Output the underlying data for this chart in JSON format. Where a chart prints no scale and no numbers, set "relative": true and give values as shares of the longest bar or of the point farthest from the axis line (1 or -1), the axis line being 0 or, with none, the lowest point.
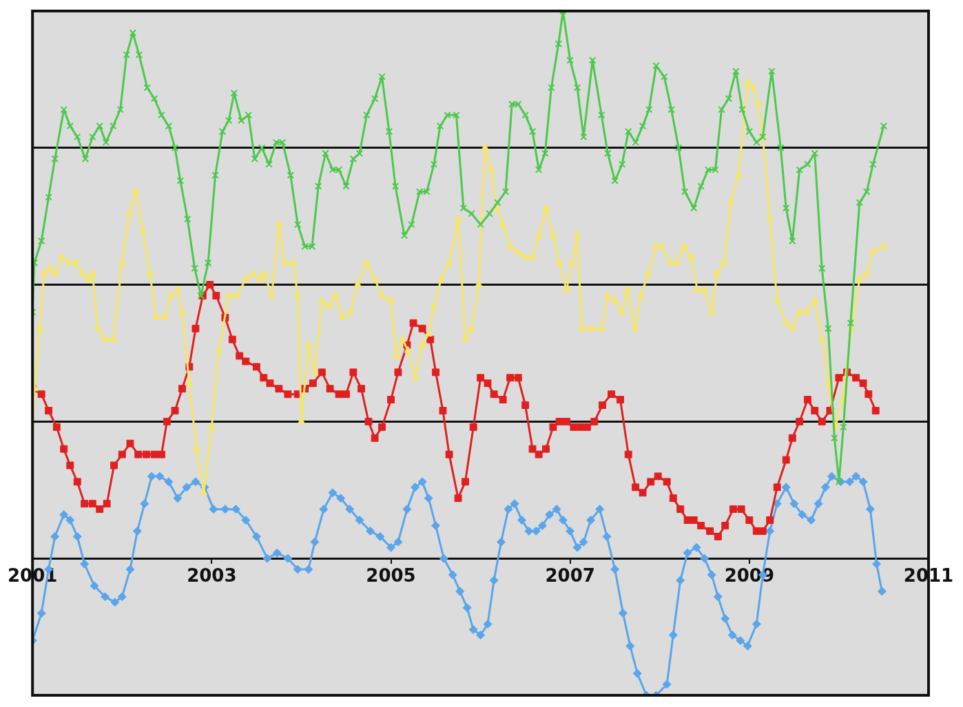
{
  "chart_data": {
    "type": "line",
    "relative": true,
    "grid": "y",
    "legend": false,
    "line_style": "solid",
    "xlim": [
      2001,
      2011
    ],
    "xticks": [
      2001,
      2003,
      2005,
      2007,
      2009,
      2011
    ],
    "series": [
      {
        "color": "#4cc94c",
        "marker": "cross",
        "x": [
          2001.0,
          2001.02,
          2001.1,
          2001.18,
          2001.25,
          2001.35,
          2001.42,
          2001.5,
          2001.59,
          2001.67,
          2001.75,
          2001.82,
          2001.9,
          2001.98,
          2002.05,
          2002.12,
          2002.19,
          2002.28,
          2002.36,
          2002.44,
          2002.52,
          2002.59,
          2002.65,
          2002.73,
          2002.81,
          2002.88,
          2002.96,
          2003.04,
          2003.12,
          2003.19,
          2003.25,
          2003.33,
          2003.41,
          2003.48,
          2003.56,
          2003.64,
          2003.72,
          2003.79,
          2003.88,
          2003.96,
          2004.04,
          2004.12,
          2004.19,
          2004.27,
          2004.35,
          2004.42,
          2004.5,
          2004.58,
          2004.65,
          2004.73,
          2004.82,
          2004.9,
          2004.98,
          2005.05,
          2005.15,
          2005.23,
          2005.32,
          2005.4,
          2005.48,
          2005.55,
          2005.63,
          2005.73,
          2005.81,
          2005.9,
          2006.0,
          2006.1,
          2006.19,
          2006.28,
          2006.35,
          2006.42,
          2006.5,
          2006.58,
          2006.65,
          2006.72,
          2006.79,
          2006.87,
          2006.92,
          2007.0,
          2007.08,
          2007.15,
          2007.25,
          2007.35,
          2007.42,
          2007.5,
          2007.58,
          2007.65,
          2007.73,
          2007.81,
          2007.88,
          2007.96,
          2008.05,
          2008.13,
          2008.21,
          2008.28,
          2008.38,
          2008.46,
          2008.54,
          2008.62,
          2008.69,
          2008.77,
          2008.85,
          2008.92,
          2009.0,
          2009.08,
          2009.15,
          2009.25,
          2009.35,
          2009.41,
          2009.48,
          2009.56,
          2009.65,
          2009.73,
          2009.81,
          2009.88,
          2009.95,
          2010.0,
          2010.05,
          2010.13,
          2010.23,
          2010.31,
          2010.38,
          2010.5
        ],
        "values": [
          0.45,
          0.54,
          0.58,
          0.66,
          0.73,
          0.82,
          0.79,
          0.77,
          0.73,
          0.77,
          0.79,
          0.76,
          0.79,
          0.82,
          0.92,
          0.96,
          0.92,
          0.86,
          0.84,
          0.81,
          0.79,
          0.75,
          0.69,
          0.62,
          0.53,
          0.48,
          0.54,
          0.7,
          0.78,
          0.8,
          0.85,
          0.8,
          0.81,
          0.73,
          0.75,
          0.72,
          0.76,
          0.76,
          0.7,
          0.61,
          0.57,
          0.57,
          0.68,
          0.74,
          0.71,
          0.71,
          0.68,
          0.73,
          0.74,
          0.81,
          0.84,
          0.88,
          0.78,
          0.68,
          0.59,
          0.61,
          0.67,
          0.67,
          0.72,
          0.79,
          0.81,
          0.81,
          0.64,
          0.63,
          0.61,
          0.63,
          0.65,
          0.67,
          0.83,
          0.83,
          0.81,
          0.78,
          0.71,
          0.74,
          0.86,
          0.94,
          1.0,
          0.91,
          0.86,
          0.77,
          0.91,
          0.81,
          0.74,
          0.69,
          0.72,
          0.78,
          0.76,
          0.79,
          0.82,
          0.9,
          0.88,
          0.82,
          0.75,
          0.67,
          0.64,
          0.68,
          0.71,
          0.71,
          0.82,
          0.84,
          0.89,
          0.82,
          0.78,
          0.76,
          0.77,
          0.89,
          0.75,
          0.64,
          0.58,
          0.71,
          0.72,
          0.74,
          0.53,
          0.42,
          0.22,
          0.14,
          0.24,
          0.43,
          0.65,
          0.67,
          0.72,
          0.79
        ]
      },
      {
        "color": "#f5e66a",
        "marker": "triangle",
        "x": [
          2001.0,
          2001.02,
          2001.08,
          2001.13,
          2001.19,
          2001.25,
          2001.33,
          2001.41,
          2001.48,
          2001.56,
          2001.62,
          2001.67,
          2001.73,
          2001.81,
          2001.9,
          2002.0,
          2002.08,
          2002.15,
          2002.23,
          2002.31,
          2002.38,
          2002.48,
          2002.54,
          2002.62,
          2002.67,
          2002.75,
          2002.83,
          2002.91,
          2003.0,
          2003.08,
          2003.19,
          2003.28,
          2003.38,
          2003.46,
          2003.54,
          2003.59,
          2003.67,
          2003.75,
          2003.81,
          2003.91,
          2003.96,
          2004.0,
          2004.08,
          2004.15,
          2004.23,
          2004.31,
          2004.38,
          2004.46,
          2004.55,
          2004.63,
          2004.73,
          2004.82,
          2004.9,
          2005.0,
          2005.06,
          2005.13,
          2005.19,
          2005.27,
          2005.35,
          2005.42,
          2005.48,
          2005.56,
          2005.65,
          2005.75,
          2005.83,
          2005.9,
          2005.98,
          2006.05,
          2006.12,
          2006.18,
          2006.25,
          2006.33,
          2006.41,
          2006.5,
          2006.58,
          2006.65,
          2006.73,
          2006.81,
          2006.88,
          2006.96,
          2007.02,
          2007.08,
          2007.13,
          2007.23,
          2007.35,
          2007.42,
          2007.5,
          2007.58,
          2007.64,
          2007.72,
          2007.79,
          2007.87,
          2007.96,
          2008.02,
          2008.12,
          2008.19,
          2008.27,
          2008.35,
          2008.42,
          2008.5,
          2008.58,
          2008.64,
          2008.72,
          2008.79,
          2008.88,
          2008.98,
          2009.04,
          2009.1,
          2009.15,
          2009.23,
          2009.31,
          2009.41,
          2009.48,
          2009.56,
          2009.64,
          2009.73,
          2009.81,
          2009.88,
          2009.96,
          2010.04,
          2010.14,
          2010.23,
          2010.31,
          2010.38,
          2010.5
        ],
        "values": [
          0.24,
          0.31,
          0.42,
          0.52,
          0.53,
          0.52,
          0.55,
          0.54,
          0.54,
          0.52,
          0.51,
          0.52,
          0.42,
          0.4,
          0.4,
          0.54,
          0.63,
          0.67,
          0.6,
          0.52,
          0.44,
          0.44,
          0.48,
          0.49,
          0.45,
          0.32,
          0.2,
          0.12,
          0.24,
          0.38,
          0.48,
          0.48,
          0.51,
          0.52,
          0.51,
          0.52,
          0.48,
          0.61,
          0.54,
          0.54,
          0.48,
          0.25,
          0.39,
          0.34,
          0.47,
          0.46,
          0.48,
          0.44,
          0.45,
          0.5,
          0.54,
          0.51,
          0.48,
          0.47,
          0.37,
          0.4,
          0.38,
          0.33,
          0.39,
          0.41,
          0.46,
          0.51,
          0.54,
          0.62,
          0.4,
          0.42,
          0.5,
          0.75,
          0.71,
          0.64,
          0.61,
          0.57,
          0.56,
          0.55,
          0.55,
          0.59,
          0.64,
          0.59,
          0.54,
          0.49,
          0.54,
          0.59,
          0.42,
          0.42,
          0.42,
          0.48,
          0.47,
          0.45,
          0.49,
          0.42,
          0.48,
          0.52,
          0.57,
          0.57,
          0.54,
          0.54,
          0.57,
          0.55,
          0.49,
          0.49,
          0.45,
          0.52,
          0.54,
          0.65,
          0.7,
          0.87,
          0.86,
          0.83,
          0.77,
          0.62,
          0.47,
          0.43,
          0.42,
          0.45,
          0.45,
          0.47,
          0.4,
          0.32,
          0.24,
          0.29,
          0.42,
          0.51,
          0.52,
          0.56,
          0.57
        ]
      },
      {
        "color": "#e02020",
        "marker": "square",
        "x": [
          2001.0,
          2001.1,
          2001.18,
          2001.27,
          2001.35,
          2001.42,
          2001.5,
          2001.58,
          2001.67,
          2001.75,
          2001.83,
          2001.91,
          2002.0,
          2002.09,
          2002.18,
          2002.27,
          2002.36,
          2002.44,
          2002.5,
          2002.59,
          2002.67,
          2002.75,
          2002.82,
          2002.9,
          2002.98,
          2003.05,
          2003.15,
          2003.23,
          2003.31,
          2003.38,
          2003.5,
          2003.58,
          2003.65,
          2003.75,
          2003.85,
          2003.96,
          2004.04,
          2004.13,
          2004.23,
          2004.32,
          2004.42,
          2004.5,
          2004.58,
          2004.67,
          2004.75,
          2004.82,
          2004.9,
          2005.0,
          2005.08,
          2005.18,
          2005.25,
          2005.35,
          2005.44,
          2005.5,
          2005.58,
          2005.65,
          2005.75,
          2005.83,
          2005.92,
          2006.0,
          2006.08,
          2006.15,
          2006.25,
          2006.33,
          2006.42,
          2006.5,
          2006.58,
          2006.65,
          2006.73,
          2006.81,
          2006.88,
          2006.96,
          2007.04,
          2007.12,
          2007.19,
          2007.27,
          2007.36,
          2007.46,
          2007.56,
          2007.65,
          2007.73,
          2007.81,
          2007.9,
          2007.98,
          2008.08,
          2008.15,
          2008.23,
          2008.31,
          2008.38,
          2008.46,
          2008.56,
          2008.65,
          2008.73,
          2008.82,
          2008.91,
          2009.0,
          2009.08,
          2009.15,
          2009.23,
          2009.31,
          2009.41,
          2009.48,
          2009.56,
          2009.65,
          2009.73,
          2009.81,
          2009.9,
          2010.0,
          2010.09,
          2010.19,
          2010.27,
          2010.33,
          2010.41
        ],
        "values": [
          0.31,
          0.3,
          0.27,
          0.24,
          0.2,
          0.17,
          0.14,
          0.1,
          0.1,
          0.09,
          0.1,
          0.17,
          0.19,
          0.21,
          0.19,
          0.19,
          0.19,
          0.19,
          0.25,
          0.27,
          0.31,
          0.35,
          0.42,
          0.48,
          0.5,
          0.48,
          0.44,
          0.4,
          0.37,
          0.36,
          0.35,
          0.33,
          0.32,
          0.31,
          0.3,
          0.3,
          0.31,
          0.32,
          0.34,
          0.31,
          0.3,
          0.3,
          0.34,
          0.31,
          0.25,
          0.22,
          0.24,
          0.29,
          0.34,
          0.39,
          0.43,
          0.42,
          0.4,
          0.34,
          0.27,
          0.19,
          0.11,
          0.14,
          0.24,
          0.33,
          0.32,
          0.3,
          0.29,
          0.33,
          0.33,
          0.28,
          0.2,
          0.19,
          0.2,
          0.24,
          0.25,
          0.25,
          0.24,
          0.24,
          0.24,
          0.25,
          0.28,
          0.3,
          0.29,
          0.19,
          0.13,
          0.12,
          0.14,
          0.15,
          0.14,
          0.11,
          0.09,
          0.07,
          0.07,
          0.06,
          0.05,
          0.04,
          0.06,
          0.09,
          0.09,
          0.07,
          0.05,
          0.05,
          0.07,
          0.13,
          0.18,
          0.22,
          0.25,
          0.29,
          0.27,
          0.25,
          0.27,
          0.33,
          0.34,
          0.33,
          0.32,
          0.3,
          0.27
        ]
      },
      {
        "color": "#5aa5ec",
        "marker": "diamond",
        "x": [
          2001.0,
          2001.1,
          2001.18,
          2001.25,
          2001.35,
          2001.42,
          2001.5,
          2001.58,
          2001.69,
          2001.81,
          2001.92,
          2002.0,
          2002.09,
          2002.17,
          2002.25,
          2002.33,
          2002.42,
          2002.52,
          2002.62,
          2002.72,
          2002.82,
          2002.92,
          2003.02,
          2003.15,
          2003.27,
          2003.38,
          2003.5,
          2003.62,
          2003.73,
          2003.85,
          2003.96,
          2004.08,
          2004.15,
          2004.25,
          2004.35,
          2004.44,
          2004.54,
          2004.65,
          2004.77,
          2004.88,
          2005.0,
          2005.08,
          2005.18,
          2005.27,
          2005.35,
          2005.42,
          2005.5,
          2005.59,
          2005.69,
          2005.77,
          2005.85,
          2005.92,
          2006.0,
          2006.08,
          2006.15,
          2006.23,
          2006.31,
          2006.38,
          2006.46,
          2006.54,
          2006.62,
          2006.69,
          2006.77,
          2006.85,
          2006.92,
          2007.0,
          2007.08,
          2007.15,
          2007.23,
          2007.33,
          2007.41,
          2007.5,
          2007.59,
          2007.67,
          2007.75,
          2007.85,
          2007.96,
          2008.08,
          2008.15,
          2008.23,
          2008.31,
          2008.41,
          2008.5,
          2008.58,
          2008.65,
          2008.73,
          2008.81,
          2008.9,
          2008.98,
          2009.08,
          2009.15,
          2009.23,
          2009.31,
          2009.41,
          2009.5,
          2009.59,
          2009.69,
          2009.77,
          2009.85,
          2009.92,
          2010.02,
          2010.12,
          2010.19,
          2010.27,
          2010.35,
          2010.42,
          2010.48
        ],
        "values": [
          -0.15,
          -0.1,
          -0.02,
          0.04,
          0.08,
          0.07,
          0.04,
          -0.01,
          -0.05,
          -0.07,
          -0.08,
          -0.07,
          -0.02,
          0.05,
          0.1,
          0.15,
          0.15,
          0.14,
          0.11,
          0.13,
          0.14,
          0.13,
          0.09,
          0.09,
          0.09,
          0.07,
          0.04,
          0.0,
          0.01,
          0.0,
          -0.02,
          -0.02,
          0.03,
          0.09,
          0.12,
          0.11,
          0.09,
          0.07,
          0.05,
          0.04,
          0.02,
          0.03,
          0.09,
          0.13,
          0.14,
          0.11,
          0.06,
          0.0,
          -0.03,
          -0.06,
          -0.09,
          -0.13,
          -0.14,
          -0.12,
          -0.04,
          0.03,
          0.09,
          0.1,
          0.07,
          0.05,
          0.05,
          0.06,
          0.08,
          0.09,
          0.07,
          0.05,
          0.02,
          0.03,
          0.07,
          0.09,
          0.04,
          -0.02,
          -0.1,
          -0.16,
          -0.21,
          -0.25,
          -0.25,
          -0.23,
          -0.14,
          -0.04,
          0.01,
          0.02,
          0.0,
          -0.03,
          -0.07,
          -0.11,
          -0.14,
          -0.15,
          -0.16,
          -0.12,
          -0.03,
          0.05,
          0.1,
          0.13,
          0.1,
          0.08,
          0.07,
          0.1,
          0.13,
          0.15,
          0.14,
          0.14,
          0.15,
          0.14,
          0.09,
          -0.01,
          -0.06
        ]
      }
    ]
  }
}
